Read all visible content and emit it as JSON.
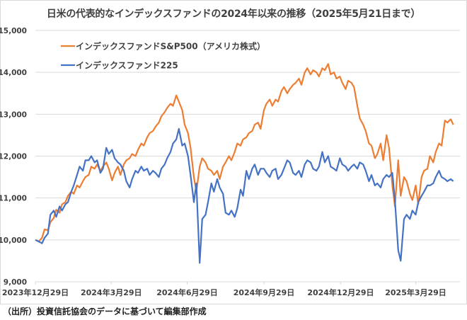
{
  "title": "日米の代表的なインデックスファンドの2024年以来の推移（2025年5月21日まで）",
  "source": "（出所）投資信託協会のデータに基づいて編集部作成",
  "chart_data": {
    "type": "line",
    "title": "日米の代表的なインデックスファンドの2024年以来の推移（2025年5月21日まで）",
    "xlabel": "",
    "ylabel": "",
    "ylim": [
      9000,
      15000
    ],
    "yticks": [
      9000,
      10000,
      11000,
      12000,
      13000,
      14000,
      15000
    ],
    "ytick_labels": [
      "9,000",
      "10,000",
      "11,000",
      "12,000",
      "13,000",
      "14,000",
      "15,000"
    ],
    "xlim_days": [
      0,
      509
    ],
    "xticks_days": [
      0,
      91,
      182,
      274,
      366,
      456
    ],
    "xtick_labels": [
      "2023年12月29日",
      "2024年3月29日",
      "2024年6月29日",
      "2024年9月29日",
      "2024年12月29日",
      "2025年3月29日"
    ],
    "grid": true,
    "legend_position": "top-left",
    "x_days": [
      0,
      4,
      8,
      11,
      15,
      18,
      22,
      25,
      29,
      32,
      36,
      39,
      43,
      46,
      50,
      53,
      57,
      60,
      64,
      67,
      71,
      74,
      78,
      81,
      85,
      88,
      92,
      95,
      99,
      102,
      106,
      109,
      113,
      116,
      120,
      123,
      127,
      130,
      134,
      137,
      141,
      144,
      148,
      151,
      155,
      158,
      162,
      165,
      169,
      172,
      176,
      179,
      183,
      186,
      190,
      193,
      197,
      200,
      204,
      207,
      211,
      214,
      218,
      221,
      225,
      228,
      232,
      235,
      239,
      242,
      246,
      249,
      253,
      256,
      260,
      263,
      267,
      270,
      274,
      277,
      281,
      284,
      288,
      291,
      295,
      298,
      302,
      305,
      309,
      312,
      316,
      319,
      323,
      326,
      330,
      333,
      337,
      340,
      344,
      347,
      351,
      354,
      358,
      361,
      365,
      368,
      372,
      375,
      379,
      382,
      386,
      389,
      393,
      396,
      400,
      403,
      407,
      410,
      414,
      417,
      421,
      424,
      428,
      431,
      435,
      438,
      442,
      445,
      449,
      452,
      456,
      459,
      463,
      466,
      470,
      473,
      477,
      480,
      484,
      487,
      491,
      494,
      498,
      501,
      505,
      509
    ],
    "series": [
      {
        "name": "インデックスファンドS&P500（アメリカ株式）",
        "color": "#ED7D31",
        "values": [
          10000,
          9960,
          10050,
          10250,
          10230,
          10420,
          10520,
          10720,
          10650,
          10850,
          10900,
          11050,
          11150,
          11100,
          11300,
          11250,
          11400,
          11500,
          11550,
          11750,
          11700,
          11800,
          11650,
          11750,
          11850,
          11700,
          11420,
          11600,
          11750,
          11550,
          11800,
          11900,
          11950,
          12050,
          12000,
          12150,
          12300,
          12250,
          12450,
          12550,
          12600,
          12700,
          12800,
          12950,
          13050,
          13150,
          13250,
          13200,
          13450,
          13300,
          13100,
          12750,
          12550,
          12200,
          11500,
          11150,
          11750,
          11950,
          11850,
          11700,
          11650,
          11550,
          11650,
          11450,
          11750,
          11850,
          12000,
          11900,
          12100,
          12300,
          12250,
          12400,
          12450,
          12550,
          12600,
          12750,
          12800,
          12650,
          13100,
          13250,
          13350,
          13200,
          13350,
          13300,
          13550,
          13650,
          13500,
          13600,
          13700,
          13750,
          13850,
          13700,
          14000,
          14100,
          13950,
          14050,
          14000,
          13900,
          14100,
          14050,
          14200,
          13950,
          14000,
          13850,
          13900,
          13750,
          13600,
          13800,
          13750,
          13650,
          13200,
          12900,
          12750,
          12600,
          12300,
          12250,
          11950,
          12050,
          12300,
          11900,
          12500,
          12200,
          11300,
          10800,
          11900,
          11050,
          11500,
          11400,
          11100,
          10950,
          11300,
          10850,
          11500,
          11650,
          11700,
          12000,
          11850,
          12100,
          12300,
          12250,
          12850,
          12800,
          12880,
          12750
        ]
      },
      {
        "name": "インデックスファンド225",
        "color": "#4472C4",
        "values": [
          10000,
          9960,
          9920,
          10050,
          10150,
          10600,
          10700,
          10550,
          10800,
          10700,
          10850,
          10900,
          11150,
          11300,
          11550,
          11750,
          11650,
          11900,
          11900,
          12000,
          11850,
          11900,
          11600,
          11700,
          12200,
          12050,
          12150,
          11950,
          11850,
          11800,
          11650,
          11400,
          11250,
          11450,
          11650,
          11600,
          11750,
          11650,
          11700,
          11550,
          11650,
          11600,
          11500,
          11700,
          11800,
          11950,
          12100,
          12300,
          12400,
          12650,
          12250,
          12300,
          12000,
          11550,
          10900,
          11350,
          9450,
          10500,
          10600,
          10900,
          11350,
          11150,
          11450,
          11250,
          11100,
          10650,
          10600,
          10700,
          10550,
          10750,
          11200,
          11050,
          11650,
          11450,
          11700,
          11800,
          11550,
          11700,
          11700,
          11600,
          11500,
          11650,
          11700,
          11450,
          11550,
          11700,
          11900,
          11850,
          11600,
          11550,
          11650,
          11500,
          11800,
          11900,
          11850,
          11700,
          11650,
          11750,
          12100,
          11850,
          12000,
          11750,
          11700,
          11650,
          11950,
          11800,
          11750,
          11650,
          11750,
          11800,
          11700,
          11850,
          11800,
          11650,
          11400,
          11550,
          11300,
          11350,
          11250,
          11450,
          11550,
          11500,
          11600,
          10950,
          9750,
          9500,
          10500,
          10600,
          10500,
          10700,
          10600,
          10900,
          11050,
          11150,
          11300,
          11300,
          11350,
          11500,
          11650,
          11500,
          11450,
          11400,
          11450,
          11400
        ]
      }
    ]
  }
}
